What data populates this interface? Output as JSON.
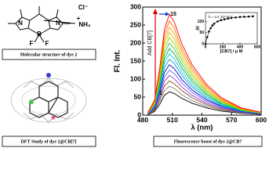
{
  "panels": {
    "molecule": {
      "labels": [
        "N",
        "N",
        "B",
        "F",
        "F",
        "Cl⁻",
        "+",
        "NH₃"
      ],
      "caption": "Molecular structure of dye 2"
    },
    "dft": {
      "caption": "DFT Study of dye 2@CB[7]"
    },
    "fluorescence": {
      "caption": "Fluorescence boost of dye 2@CB7"
    }
  },
  "chart_data": [
    {
      "type": "line",
      "y_label": "Fl. Int.",
      "x_label": "λ (nm)",
      "annotations": [
        "Add CB[7]",
        "15",
        "1"
      ],
      "x": [
        485,
        492,
        497,
        502,
        507,
        512,
        520,
        530,
        545,
        560,
        580,
        600
      ],
      "xlim": [
        480,
        600
      ],
      "xticks": [
        480,
        510,
        540,
        570,
        600
      ],
      "ylim": [
        0,
        300
      ],
      "yticks": [
        0,
        50,
        100,
        150,
        200,
        250,
        300
      ],
      "series": [
        {
          "color": "#000000",
          "values": [
            1,
            10,
            29,
            55,
            65,
            60,
            46,
            33,
            20,
            11,
            5,
            2
          ]
        },
        {
          "color": "#7f7f7f",
          "values": [
            2,
            12,
            36,
            68,
            80,
            74,
            56,
            40,
            24,
            14,
            6,
            2
          ]
        },
        {
          "color": "#8b4513",
          "values": [
            2,
            14,
            43,
            81,
            95,
            87,
            67,
            48,
            29,
            16,
            7,
            3
          ]
        },
        {
          "color": "#9933cc",
          "values": [
            2,
            17,
            50,
            94,
            110,
            101,
            77,
            55,
            33,
            19,
            8,
            3
          ]
        },
        {
          "color": "#6666ff",
          "values": [
            3,
            19,
            56,
            106,
            125,
            115,
            88,
            63,
            38,
            21,
            9,
            4
          ]
        },
        {
          "color": "#0000cc",
          "values": [
            3,
            21,
            63,
            119,
            140,
            129,
            98,
            70,
            42,
            24,
            10,
            4
          ]
        },
        {
          "color": "#0099cc",
          "values": [
            3,
            23,
            70,
            132,
            155,
            143,
            109,
            78,
            47,
            26,
            11,
            5
          ]
        },
        {
          "color": "#00cccc",
          "values": [
            3,
            26,
            77,
            145,
            170,
            156,
            119,
            85,
            51,
            29,
            12,
            5
          ]
        },
        {
          "color": "#00aa55",
          "values": [
            4,
            28,
            83,
            157,
            185,
            170,
            130,
            93,
            56,
            31,
            13,
            6
          ]
        },
        {
          "color": "#33cc33",
          "values": [
            4,
            30,
            90,
            170,
            200,
            184,
            140,
            100,
            60,
            34,
            14,
            6
          ]
        },
        {
          "color": "#99cc00",
          "values": [
            4,
            32,
            97,
            183,
            215,
            198,
            151,
            108,
            65,
            37,
            15,
            6
          ]
        },
        {
          "color": "#cccc00",
          "values": [
            5,
            35,
            104,
            196,
            230,
            212,
            161,
            115,
            69,
            39,
            16,
            7
          ]
        },
        {
          "color": "#ff9900",
          "values": [
            5,
            37,
            110,
            208,
            245,
            225,
            172,
            123,
            74,
            42,
            17,
            7
          ]
        },
        {
          "color": "#ff6600",
          "values": [
            5,
            39,
            118,
            223,
            262,
            241,
            183,
            131,
            79,
            45,
            18,
            8
          ]
        },
        {
          "color": "#ff0000",
          "values": [
            6,
            42,
            126,
            238,
            280,
            258,
            196,
            140,
            84,
            48,
            20,
            8
          ]
        }
      ]
    },
    {
      "type": "scatter",
      "y_label": "ΔI",
      "x_label": "[CB7] / μ M",
      "annotation": "k = 4.4 10⁵ M⁻¹",
      "x": [
        0,
        20,
        40,
        60,
        80,
        100,
        140,
        180,
        220,
        260,
        300,
        350,
        400,
        450,
        500,
        550
      ],
      "values": [
        0,
        30,
        55,
        70,
        82,
        90,
        100,
        106,
        110,
        113,
        116,
        118,
        120,
        121,
        122,
        123
      ],
      "color": "#000000",
      "xlim": [
        0,
        600
      ],
      "xticks": [
        0,
        200,
        400,
        600
      ],
      "ylim": [
        0,
        140
      ],
      "yticks": [
        0,
        50,
        100
      ]
    }
  ]
}
